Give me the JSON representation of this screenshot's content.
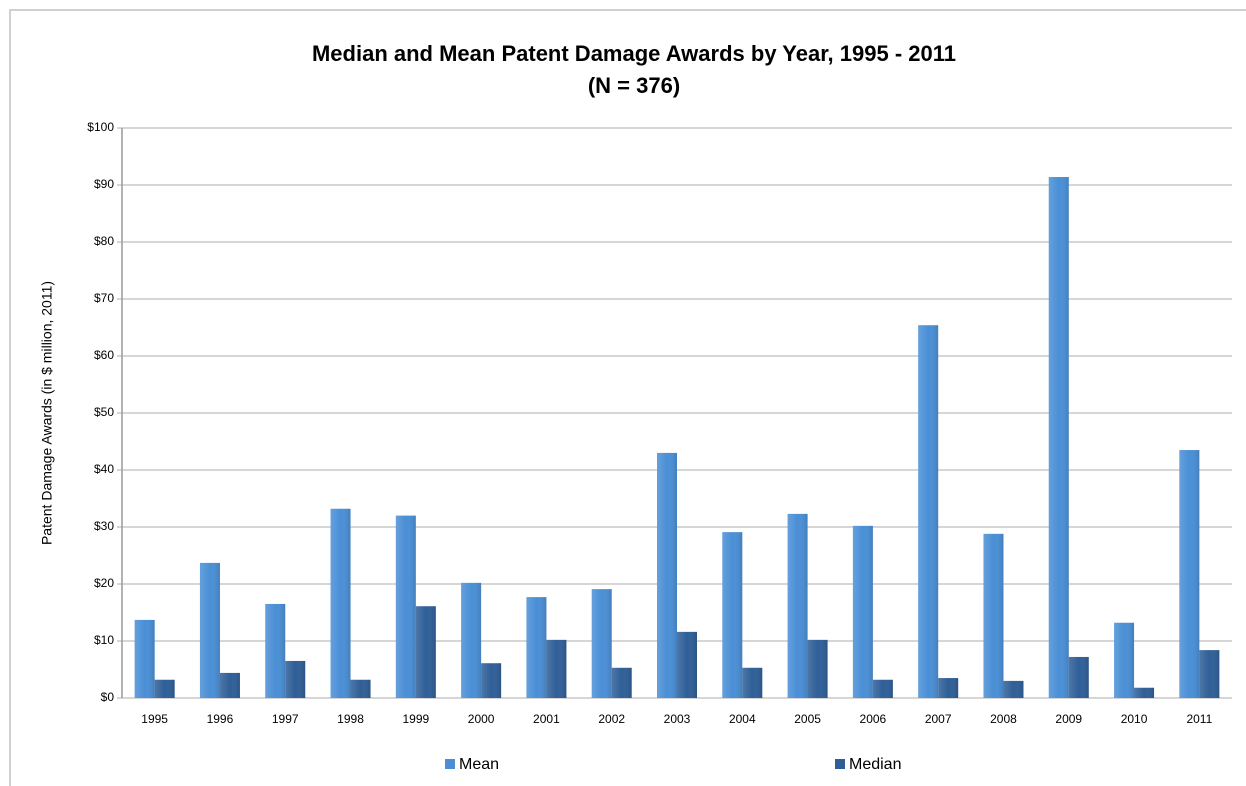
{
  "chart_data": {
    "type": "bar",
    "title": "Median and Mean Patent Damage Awards by Year, 1995 - 2011",
    "subtitle": "(N = 376)",
    "y_label": "Patent Damage Awards (in $ million, 2011)",
    "categories": [
      "1995",
      "1996",
      "1997",
      "1998",
      "1999",
      "2000",
      "2001",
      "2002",
      "2003",
      "2004",
      "2005",
      "2006",
      "2007",
      "2008",
      "2009",
      "2010",
      "2011"
    ],
    "series": [
      {
        "name": "Mean",
        "color": "#4a8fd6",
        "values": [
          13.7,
          23.7,
          16.5,
          33.2,
          32,
          20.2,
          17.7,
          19.1,
          43,
          29.1,
          32.3,
          30.2,
          65.4,
          28.8,
          91.4,
          13.2,
          43.5
        ]
      },
      {
        "name": "Median",
        "color": "#2f5f98",
        "values": [
          3.2,
          4.4,
          6.5,
          3.2,
          16.1,
          6.1,
          10.2,
          5.3,
          11.6,
          5.3,
          10.2,
          3.2,
          3.5,
          3,
          7.2,
          1.8,
          8.4
        ]
      }
    ],
    "ylim": [
      0,
      100
    ],
    "yticks": [
      {
        "value": 0,
        "label": "$0"
      },
      {
        "value": 10,
        "label": "$10"
      },
      {
        "value": 20,
        "label": "$20"
      },
      {
        "value": 30,
        "label": "$30"
      },
      {
        "value": 40,
        "label": "$40"
      },
      {
        "value": 50,
        "label": "$50"
      },
      {
        "value": 60,
        "label": "$60"
      },
      {
        "value": 70,
        "label": "$70"
      },
      {
        "value": 80,
        "label": "$80"
      },
      {
        "value": 90,
        "label": "$90"
      },
      {
        "value": 100,
        "label": "$100"
      }
    ],
    "grid": true,
    "legend": "bottom"
  }
}
